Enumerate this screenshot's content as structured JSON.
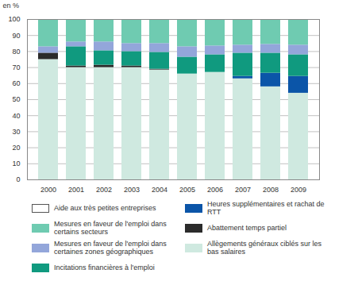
{
  "chart_data": {
    "type": "bar",
    "stacked": true,
    "grid": true,
    "y_label": "en %",
    "categories": [
      "2000",
      "2001",
      "2002",
      "2003",
      "2004",
      "2005",
      "2006",
      "2007",
      "2008",
      "2009"
    ],
    "ylim": [
      0,
      100
    ],
    "yticks": [
      0,
      10,
      20,
      30,
      40,
      50,
      60,
      70,
      80,
      90,
      100
    ],
    "series": [
      {
        "name": "Allègements généraux ciblés sur les bas salaires",
        "color": "#cfe9e0",
        "values": [
          75,
          70,
          70,
          70,
          68.5,
          66,
          67,
          63,
          58,
          54
        ]
      },
      {
        "name": "Abattement temps partiel",
        "color": "#2b2b2b",
        "values": [
          4,
          1,
          1.5,
          1,
          0.5,
          0,
          0,
          0,
          0,
          0
        ]
      },
      {
        "name": "Heures supplémentaires et rachat de RTT",
        "color": "#0b55a8",
        "values": [
          0,
          0,
          0,
          0,
          0,
          0,
          0,
          1.5,
          8.5,
          10.5
        ]
      },
      {
        "name": "Incitations financières à l'emploi",
        "color": "#109a7f",
        "values": [
          0,
          12,
          9,
          9,
          10.5,
          10.5,
          11,
          14.5,
          12.5,
          13.5
        ]
      },
      {
        "name": "Mesures en faveur de l'emploi dans certaines zones géographiques",
        "color": "#93a6da",
        "values": [
          4,
          3,
          5.5,
          5,
          5.5,
          6.5,
          5.5,
          5,
          5.5,
          6
        ]
      },
      {
        "name": "Mesures en faveur de l'emploi dans certains secteurs",
        "color": "#6fcbb1",
        "values": [
          17,
          14,
          14,
          15,
          15,
          17,
          16.5,
          16,
          15.5,
          16
        ]
      },
      {
        "name": "Aide aux très petites entreprises",
        "color": "#ffffff",
        "values": [
          0,
          0,
          0,
          0,
          0,
          0,
          0,
          0,
          0,
          0
        ]
      }
    ]
  }
}
